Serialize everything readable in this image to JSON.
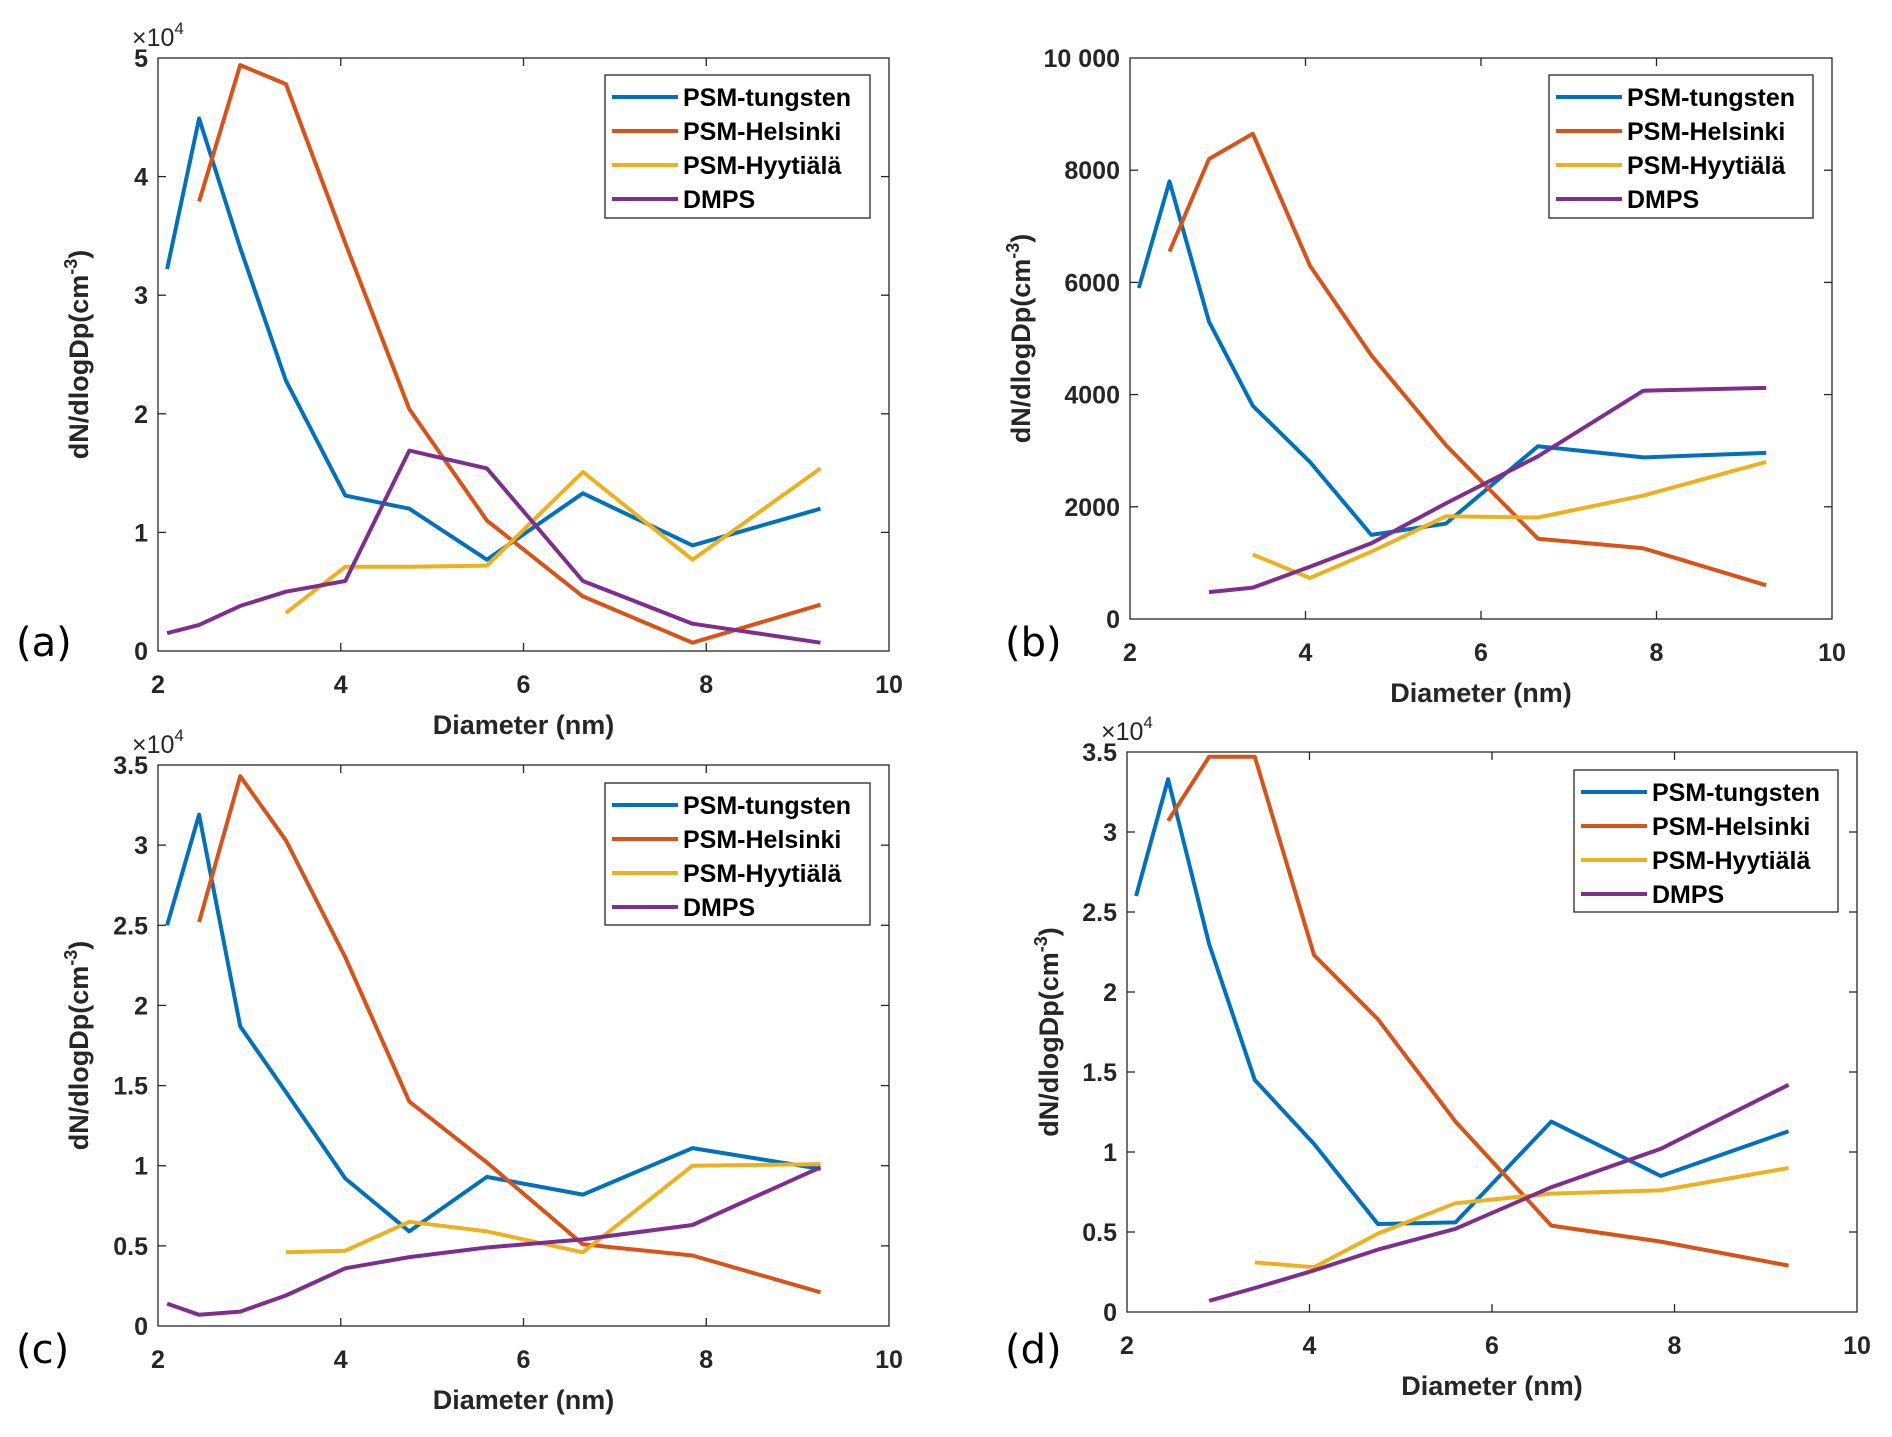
{
  "chart_data": [
    {
      "panel": "(a)",
      "type": "line",
      "xlabel": "Diameter (nm)",
      "ylabel": "dN/dlogDp(cm",
      "ylabel_sup": "-3",
      "xlim": [
        2,
        10
      ],
      "ylim": [
        0,
        50000
      ],
      "y_multiplier": "×10",
      "y_multiplier_exp": "4",
      "xticks": [
        2,
        4,
        6,
        8,
        10
      ],
      "xtick_labels": [
        "2",
        "4",
        "6",
        "8",
        "10"
      ],
      "yticks": [
        0,
        10000,
        20000,
        30000,
        40000,
        50000
      ],
      "ytick_labels": [
        "0",
        "1",
        "2",
        "3",
        "4",
        "5"
      ],
      "legend_position": "top-right",
      "series": [
        {
          "name": "PSM-tungsten",
          "color": "#0072BD",
          "x": [
            2.1,
            2.45,
            2.9,
            3.4,
            4.05,
            4.75,
            5.6,
            6.65,
            7.85,
            9.25
          ],
          "y": [
            32200,
            44900,
            34000,
            22800,
            13100,
            12000,
            7700,
            13300,
            8900,
            12000
          ]
        },
        {
          "name": "PSM-Helsinki",
          "color": "#D95319",
          "x": [
            2.45,
            2.9,
            3.4,
            4.05,
            4.75,
            5.6,
            6.65,
            7.85,
            9.25
          ],
          "y": [
            37900,
            49400,
            47800,
            34400,
            20400,
            11000,
            4600,
            700,
            3900
          ]
        },
        {
          "name": "PSM-Hyytiälä",
          "color": "#EDB120",
          "x": [
            3.4,
            4.05,
            4.75,
            5.6,
            6.65,
            7.85,
            9.25
          ],
          "y": [
            3200,
            7100,
            7100,
            7200,
            15100,
            7700,
            15400
          ]
        },
        {
          "name": "DMPS",
          "color": "#7E2F8E",
          "x": [
            2.1,
            2.45,
            2.9,
            3.4,
            4.05,
            4.75,
            5.6,
            6.65,
            7.85,
            9.25
          ],
          "y": [
            1500,
            2200,
            3800,
            5000,
            5900,
            16900,
            15400,
            5900,
            2300,
            700
          ]
        }
      ]
    },
    {
      "panel": "(b)",
      "type": "line",
      "xlabel": "Diameter (nm)",
      "ylabel": "dN/dlogDp(cm",
      "ylabel_sup": "-3",
      "xlim": [
        2,
        10
      ],
      "ylim": [
        0,
        10000
      ],
      "y_multiplier": "",
      "y_multiplier_exp": "",
      "xticks": [
        2,
        4,
        6,
        8,
        10
      ],
      "xtick_labels": [
        "2",
        "4",
        "6",
        "8",
        "10"
      ],
      "yticks": [
        0,
        2000,
        4000,
        6000,
        8000,
        10000
      ],
      "ytick_labels": [
        "0",
        "2000",
        "4000",
        "6000",
        "8000",
        "10 000"
      ],
      "legend_position": "top-right",
      "series": [
        {
          "name": "PSM-tungsten",
          "color": "#0072BD",
          "x": [
            2.1,
            2.45,
            2.9,
            3.4,
            4.05,
            4.75,
            5.6,
            6.65,
            7.85,
            9.25
          ],
          "y": [
            5900,
            7800,
            5300,
            3800,
            2800,
            1500,
            1700,
            3080,
            2880,
            2960
          ]
        },
        {
          "name": "PSM-Helsinki",
          "color": "#D95319",
          "x": [
            2.45,
            2.9,
            3.4,
            4.05,
            4.75,
            5.6,
            6.65,
            7.85,
            9.25
          ],
          "y": [
            6550,
            8200,
            8650,
            6300,
            4700,
            3100,
            1430,
            1260,
            600
          ]
        },
        {
          "name": "PSM-Hyytiälä",
          "color": "#EDB120",
          "x": [
            3.4,
            4.05,
            4.75,
            5.6,
            6.65,
            7.85,
            9.25
          ],
          "y": [
            1150,
            730,
            1200,
            1830,
            1810,
            2200,
            2800
          ]
        },
        {
          "name": "DMPS",
          "color": "#7E2F8E",
          "x": [
            2.9,
            3.4,
            4.05,
            4.75,
            5.6,
            6.65,
            7.85,
            9.25
          ],
          "y": [
            480,
            560,
            930,
            1350,
            2060,
            2900,
            4070,
            4120
          ]
        }
      ]
    },
    {
      "panel": "(c)",
      "type": "line",
      "xlabel": "Diameter (nm)",
      "ylabel": "dN/dlogDp(cm",
      "ylabel_sup": "-3",
      "xlim": [
        2,
        10
      ],
      "ylim": [
        0,
        35000
      ],
      "y_multiplier": "×10",
      "y_multiplier_exp": "4",
      "xticks": [
        2,
        4,
        6,
        8,
        10
      ],
      "xtick_labels": [
        "2",
        "4",
        "6",
        "8",
        "10"
      ],
      "yticks": [
        0,
        5000,
        10000,
        15000,
        20000,
        25000,
        30000,
        35000
      ],
      "ytick_labels": [
        "0",
        "0.5",
        "1",
        "1.5",
        "2",
        "2.5",
        "3",
        "3.5"
      ],
      "legend_position": "top-right",
      "series": [
        {
          "name": "PSM-tungsten",
          "color": "#0072BD",
          "x": [
            2.1,
            2.45,
            2.9,
            3.4,
            4.05,
            4.75,
            5.6,
            6.65,
            7.85,
            9.25
          ],
          "y": [
            25000,
            31900,
            18700,
            14600,
            9200,
            5900,
            9300,
            8200,
            11100,
            9800
          ]
        },
        {
          "name": "PSM-Helsinki",
          "color": "#D95319",
          "x": [
            2.45,
            2.9,
            3.4,
            4.05,
            4.75,
            5.6,
            6.65,
            7.85,
            9.25
          ],
          "y": [
            25200,
            34300,
            30300,
            23000,
            14000,
            10200,
            5100,
            4400,
            2100
          ]
        },
        {
          "name": "PSM-Hyytiälä",
          "color": "#EDB120",
          "x": [
            3.4,
            4.05,
            4.75,
            5.6,
            6.65,
            7.85,
            9.25
          ],
          "y": [
            4600,
            4700,
            6500,
            5900,
            4600,
            10000,
            10100
          ]
        },
        {
          "name": "DMPS",
          "color": "#7E2F8E",
          "x": [
            2.1,
            2.45,
            2.9,
            3.4,
            4.05,
            4.75,
            5.6,
            6.65,
            7.85,
            9.25
          ],
          "y": [
            1400,
            700,
            900,
            1900,
            3600,
            4300,
            4900,
            5400,
            6300,
            9900
          ]
        }
      ]
    },
    {
      "panel": "(d)",
      "type": "line",
      "xlabel": "Diameter (nm)",
      "ylabel": "dN/dlogDp(cm",
      "ylabel_sup": "-3",
      "xlim": [
        2,
        10
      ],
      "ylim": [
        0,
        35000
      ],
      "y_multiplier": "×10",
      "y_multiplier_exp": "4",
      "xticks": [
        2,
        4,
        6,
        8,
        10
      ],
      "xtick_labels": [
        "2",
        "4",
        "6",
        "8",
        "10"
      ],
      "yticks": [
        0,
        5000,
        10000,
        15000,
        20000,
        25000,
        30000,
        35000
      ],
      "ytick_labels": [
        "0",
        "0.5",
        "1",
        "1.5",
        "2",
        "2.5",
        "3",
        "3.5"
      ],
      "legend_position": "top-right",
      "series": [
        {
          "name": "PSM-tungsten",
          "color": "#0072BD",
          "x": [
            2.1,
            2.45,
            2.9,
            3.4,
            4.05,
            4.75,
            5.6,
            6.65,
            7.85,
            9.25
          ],
          "y": [
            26000,
            33300,
            23000,
            14500,
            10500,
            5500,
            5600,
            11900,
            8500,
            11300
          ]
        },
        {
          "name": "PSM-Helsinki",
          "color": "#D95319",
          "x": [
            2.45,
            2.9,
            3.4,
            4.05,
            4.75,
            5.6,
            6.65,
            7.85,
            9.25
          ],
          "y": [
            30700,
            34700,
            34700,
            22300,
            18300,
            11900,
            5400,
            4400,
            2900
          ]
        },
        {
          "name": "PSM-Hyytiälä",
          "color": "#EDB120",
          "x": [
            3.4,
            4.05,
            4.75,
            5.6,
            6.65,
            7.85,
            9.25
          ],
          "y": [
            3100,
            2800,
            4900,
            6800,
            7400,
            7600,
            9000
          ]
        },
        {
          "name": "DMPS",
          "color": "#7E2F8E",
          "x": [
            2.9,
            3.4,
            4.05,
            4.75,
            5.6,
            6.65,
            7.85,
            9.25
          ],
          "y": [
            700,
            1500,
            2600,
            3900,
            5200,
            7800,
            10200,
            14200
          ]
        }
      ]
    }
  ]
}
